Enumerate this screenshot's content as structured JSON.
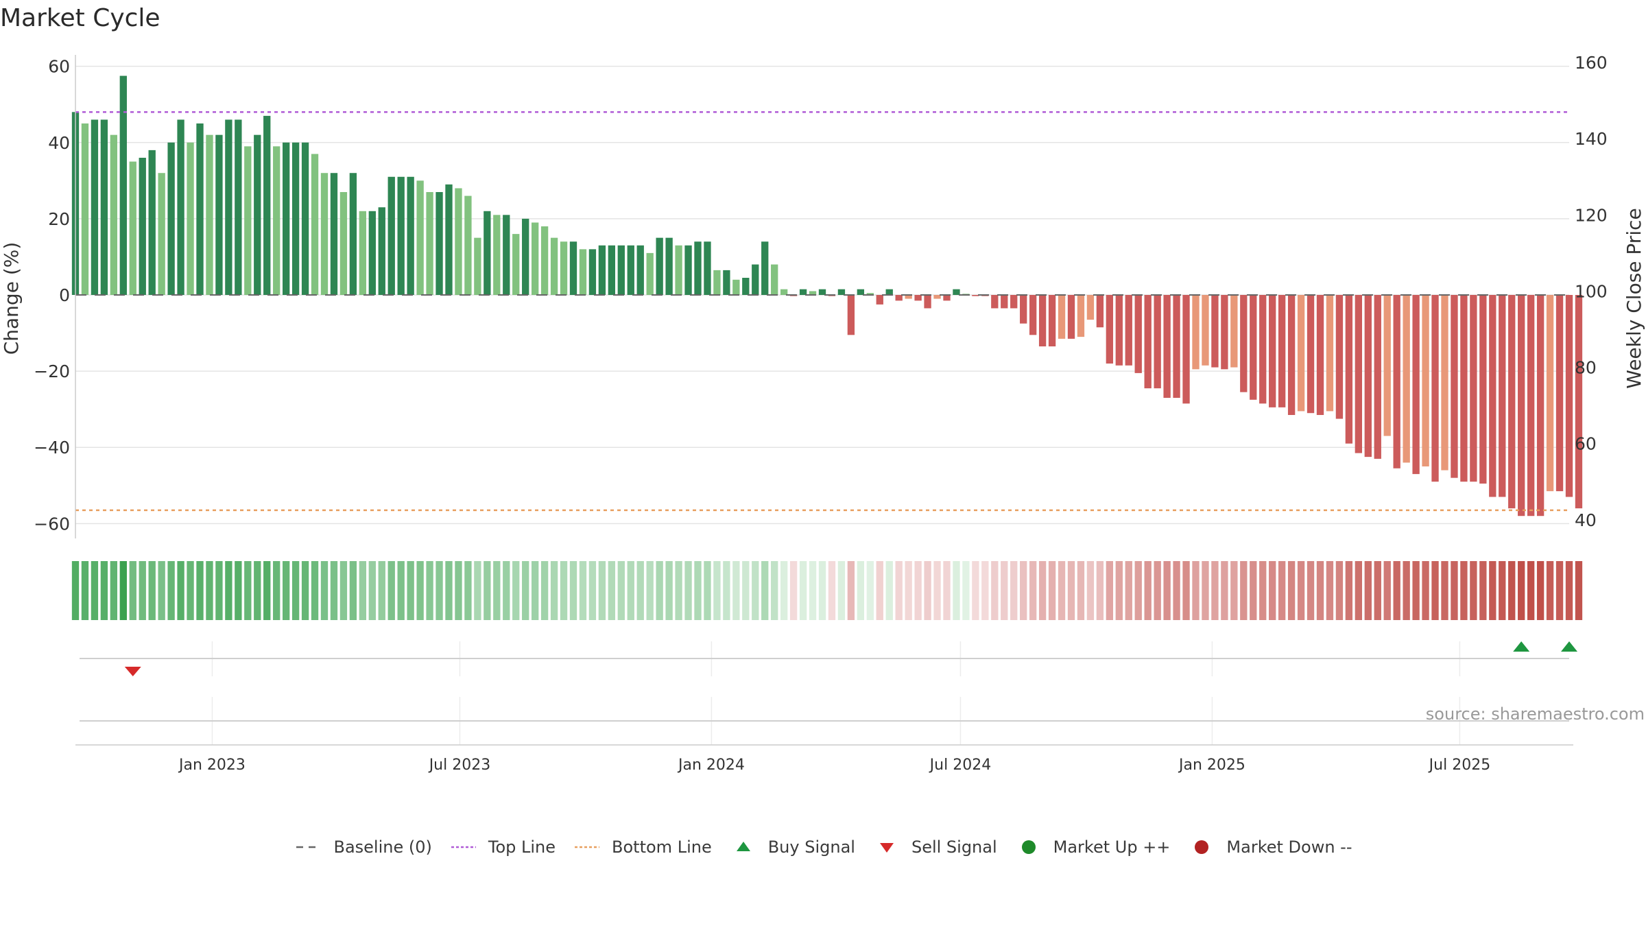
{
  "chart_data": {
    "type": "bar",
    "title": "Market Cycle",
    "ylabel": "Change (%)",
    "y2label": "Weekly Close Price",
    "ylim": [
      -63,
      63
    ],
    "y2lim": [
      36,
      162
    ],
    "yticks": [
      "60",
      "40",
      "20",
      "0",
      "−20",
      "−40",
      "−60"
    ],
    "y2ticks": [
      "160",
      "140",
      "120",
      "100",
      "80",
      "60",
      "40"
    ],
    "xticks": [
      "Jan 2023",
      "Jul 2023",
      "Jan 2024",
      "Jul 2024",
      "Jan 2025",
      "Jul 2025"
    ],
    "x_start": "2022-09-23",
    "x_end": "2025-09-19",
    "reference_lines": {
      "baseline": 0,
      "top_line": 48,
      "bottom_line": -56.5
    },
    "series": [
      {
        "values": [
          48,
          45,
          46,
          46,
          42,
          57.5,
          35,
          36,
          38,
          32,
          40,
          46,
          40,
          45,
          42,
          42,
          46,
          46,
          39,
          42,
          47,
          39,
          40,
          40,
          40,
          37,
          32,
          32,
          27,
          32,
          22,
          22,
          23,
          31,
          31,
          31,
          30,
          27,
          27,
          29,
          28,
          26,
          15,
          22,
          21,
          21,
          16,
          20,
          19,
          18,
          15,
          14,
          14,
          12,
          12,
          13,
          13,
          13,
          13,
          13,
          11,
          15,
          15,
          13,
          13,
          14,
          14,
          6.5,
          6.5,
          4,
          4.5,
          8,
          14,
          8,
          1.5,
          -0.3,
          1.5,
          1,
          1.5,
          -0.3,
          1.5,
          -10.5,
          1.5,
          0.5,
          -2.5,
          1.5,
          -1.5,
          -1,
          -1.5,
          -3.5,
          -1,
          -1.5,
          1.5,
          0.3,
          -0.3,
          -0.3,
          -3.5,
          -3.5,
          -3.5,
          -7.5,
          -10.5,
          -13.5,
          -13.5,
          -11.5,
          -11.5,
          -11,
          -6.5,
          -8.5,
          -18,
          -18.5,
          -18.5,
          -20.5,
          -24.5,
          -24.5,
          -27,
          -27,
          -28.5,
          -19.5,
          -18.5,
          -19,
          -19.5,
          -19,
          -25.5,
          -27.5,
          -28.5,
          -29.5,
          -29.5,
          -31.5,
          -30.5,
          -31,
          -31.5,
          -30.5,
          -32.5,
          -39,
          -41.5,
          -42.5,
          -43,
          -37,
          -45.5,
          -44,
          -47,
          -45,
          -49,
          -46,
          -48,
          -49,
          -49,
          -49.5,
          -53,
          -53,
          -56,
          -58,
          -58,
          -58,
          -51.5,
          -51.5,
          -53,
          -56
        ]
      }
    ],
    "signals": {
      "buy": [
        "2025-08-15",
        "2025-09-19"
      ],
      "sell": [
        "2022-11-04"
      ]
    }
  },
  "source_text": "source: sharemaestro.com",
  "legend": [
    {
      "label": "Baseline (0)",
      "icon": "dash-line",
      "color": "#666666"
    },
    {
      "label": "Top Line",
      "icon": "dotted-line",
      "color": "#b05cd6"
    },
    {
      "label": "Bottom Line",
      "icon": "dotted-line",
      "color": "#e8a060"
    },
    {
      "label": "Buy Signal",
      "icon": "triangle-up",
      "color": "#1e9640"
    },
    {
      "label": "Sell Signal",
      "icon": "triangle-down",
      "color": "#d62a2a"
    },
    {
      "label": "Market Up ++",
      "icon": "circle",
      "color": "#1e8a2a"
    },
    {
      "label": "Market Down --",
      "icon": "circle",
      "color": "#b22222"
    }
  ],
  "colors": {
    "up_dark": "#2e8653",
    "up_light": "#82c27f",
    "down_dark": "#cc5b5b",
    "down_light": "#e89878",
    "band_green": "#3aa14e",
    "band_red": "#c0504a"
  }
}
